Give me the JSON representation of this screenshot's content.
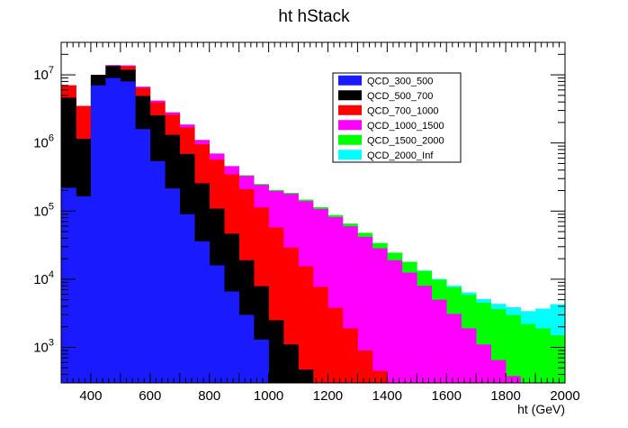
{
  "chart_data": {
    "type": "bar",
    "title": "ht hStack",
    "xlabel": "ht (GeV)",
    "ylabel": "",
    "xlim": [
      300,
      2000
    ],
    "ylim": [
      300,
      30000000
    ],
    "y_scale": "log",
    "bin_width": 50,
    "bin_edges_start": 300,
    "grid": false,
    "legend_placement": "top-right",
    "x_ticks": [
      {
        "value": 400,
        "label": "400"
      },
      {
        "value": 600,
        "label": "600"
      },
      {
        "value": 800,
        "label": "800"
      },
      {
        "value": 1000,
        "label": "1000"
      },
      {
        "value": 1200,
        "label": "1200"
      },
      {
        "value": 1400,
        "label": "1400"
      },
      {
        "value": 1600,
        "label": "1600"
      },
      {
        "value": 1800,
        "label": "1800"
      },
      {
        "value": 2000,
        "label": "2000"
      }
    ],
    "y_ticks": [
      {
        "value": 1000,
        "base": "10",
        "exp": "3"
      },
      {
        "value": 10000,
        "base": "10",
        "exp": "4"
      },
      {
        "value": 100000,
        "base": "10",
        "exp": "5"
      },
      {
        "value": 1000000,
        "base": "10",
        "exp": "6"
      },
      {
        "value": 10000000,
        "base": "10",
        "exp": "7"
      }
    ],
    "series": [
      {
        "name": "QCD_300_500",
        "color": "#1a1aff",
        "values": [
          220000,
          165000,
          7000000,
          9000000,
          8000000,
          1600000,
          540000,
          215000,
          90000,
          36000,
          16000,
          6600,
          3000,
          1300,
          0,
          0,
          0,
          0,
          0,
          0,
          0,
          0,
          0,
          0,
          0,
          0,
          0,
          0,
          0,
          0,
          0,
          0,
          0,
          0,
          0,
          0
        ]
      },
      {
        "name": "QCD_500_700",
        "color": "#000000",
        "values": [
          4400000,
          985000,
          3000000,
          4500000,
          3900000,
          3300000,
          2000000,
          1100000,
          600000,
          220000,
          93000,
          40000,
          16000,
          6600,
          2500,
          1100,
          470,
          220,
          0,
          0,
          0,
          0,
          0,
          0,
          0,
          0,
          0,
          0,
          0,
          0,
          0,
          0,
          0,
          0,
          0,
          0
        ]
      },
      {
        "name": "QCD_700_1000",
        "color": "#ff0000",
        "values": [
          2400000,
          2350000,
          0,
          0,
          1500000,
          1500000,
          1400000,
          1300000,
          1000000,
          700000,
          460000,
          300000,
          190000,
          105000,
          55000,
          28000,
          15000,
          7500,
          3800,
          1900,
          900,
          450,
          0,
          0,
          0,
          0,
          0,
          0,
          0,
          0,
          0,
          0,
          0,
          0,
          0,
          0
        ]
      },
      {
        "name": "QCD_1000_1500",
        "color": "#ff00ff",
        "values": [
          0,
          0,
          0,
          400000,
          350000,
          300000,
          250000,
          200000,
          170000,
          150000,
          130000,
          110000,
          120000,
          130000,
          140000,
          150000,
          125000,
          100000,
          78000,
          58000,
          41000,
          28000,
          19000,
          12500,
          8000,
          5000,
          3100,
          1900,
          1100,
          650,
          380,
          0,
          0,
          0,
          0,
          0
        ]
      },
      {
        "name": "QCD_1500_2000",
        "color": "#00ff00",
        "values": [
          0,
          0,
          0,
          0,
          0,
          0,
          0,
          0,
          0,
          0,
          0,
          0,
          7000,
          6500,
          6000,
          6000,
          7000,
          6000,
          5500,
          5500,
          6000,
          5500,
          5500,
          5500,
          5200,
          4800,
          4500,
          4000,
          3400,
          3000,
          2600,
          2200,
          1900,
          1500,
          1200,
          1000
        ]
      },
      {
        "name": "QCD_2000_Inf",
        "color": "#00ffff",
        "values": [
          0,
          0,
          0,
          0,
          0,
          0,
          0,
          0,
          0,
          0,
          0,
          0,
          0,
          0,
          0,
          0,
          0,
          0,
          0,
          0,
          0,
          0,
          0,
          0,
          200,
          300,
          400,
          500,
          600,
          700,
          900,
          1200,
          1800,
          2800,
          3700,
          8500
        ]
      }
    ]
  }
}
